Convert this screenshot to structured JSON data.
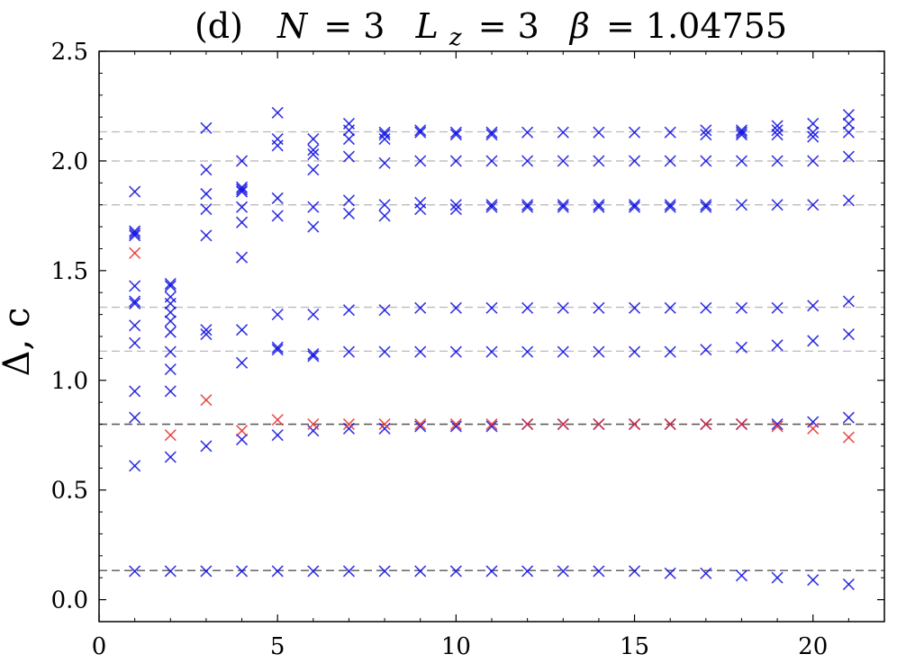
{
  "chart_data": {
    "type": "scatter",
    "title": "(d)  N = 3  L_z = 3  β = 1.04755",
    "title_parts": [
      "(d)",
      "N",
      "= 3",
      "L",
      "z",
      "= 3",
      "β",
      "= 1.04755"
    ],
    "xlabel": "",
    "ylabel": "Δ, c",
    "xlim": [
      0,
      22
    ],
    "ylim": [
      -0.1,
      2.5
    ],
    "xticks": [
      0,
      5,
      10,
      15,
      20
    ],
    "xtick_labels": [
      "0",
      "5",
      "10",
      "15",
      "20"
    ],
    "yticks": [
      0.0,
      0.5,
      1.0,
      1.5,
      2.0,
      2.5
    ],
    "ytick_labels": [
      "0.0",
      "0.5",
      "1.0",
      "1.5",
      "2.0",
      "2.5"
    ],
    "marker": "x",
    "reference_lines": [
      {
        "y": 0.133,
        "color": "#555555"
      },
      {
        "y": 0.8,
        "color": "#e07070"
      },
      {
        "y": 0.8,
        "color": "#555555"
      },
      {
        "y": 1.133,
        "color": "#bbbbbb"
      },
      {
        "y": 1.333,
        "color": "#bbbbbb"
      },
      {
        "y": 1.8,
        "color": "#bbbbbb"
      },
      {
        "y": 2.0,
        "color": "#bbbbbb"
      },
      {
        "y": 2.133,
        "color": "#bbbbbb"
      }
    ],
    "series": [
      {
        "name": "blue",
        "color": "#1010e0",
        "x": [
          1,
          1,
          1,
          1,
          1,
          1,
          1,
          1,
          1,
          1,
          1,
          1,
          1,
          2,
          2,
          2,
          2,
          2,
          2,
          2,
          2,
          2,
          2,
          2,
          2,
          3,
          3,
          3,
          3,
          3,
          3,
          3,
          3,
          3,
          4,
          4,
          4,
          4,
          4,
          4,
          4,
          4,
          4,
          4,
          4,
          5,
          5,
          5,
          5,
          5,
          5,
          5,
          5,
          5,
          5,
          6,
          6,
          6,
          6,
          6,
          6,
          6,
          6,
          6,
          6,
          6,
          7,
          7,
          7,
          7,
          7,
          7,
          7,
          7,
          7,
          7,
          8,
          8,
          8,
          8,
          8,
          8,
          8,
          8,
          8,
          8,
          9,
          9,
          9,
          9,
          9,
          9,
          9,
          9,
          9,
          10,
          10,
          10,
          10,
          10,
          10,
          10,
          10,
          10,
          11,
          11,
          11,
          11,
          11,
          11,
          11,
          11,
          11,
          12,
          12,
          12,
          12,
          12,
          12,
          12,
          12,
          13,
          13,
          13,
          13,
          13,
          13,
          13,
          13,
          14,
          14,
          14,
          14,
          14,
          14,
          14,
          14,
          15,
          15,
          15,
          15,
          15,
          15,
          15,
          15,
          16,
          16,
          16,
          16,
          16,
          16,
          16,
          16,
          17,
          17,
          17,
          17,
          17,
          17,
          17,
          17,
          17,
          18,
          18,
          18,
          18,
          18,
          18,
          18,
          18,
          18,
          19,
          19,
          19,
          19,
          19,
          19,
          19,
          19,
          19,
          20,
          20,
          20,
          20,
          20,
          20,
          20,
          20,
          20,
          21,
          21,
          21,
          21,
          21,
          21,
          21,
          21,
          21
        ],
        "y": [
          0.13,
          0.61,
          0.83,
          0.95,
          1.17,
          1.25,
          1.35,
          1.36,
          1.43,
          1.66,
          1.67,
          1.68,
          1.86,
          0.13,
          0.65,
          0.95,
          1.05,
          1.13,
          1.22,
          1.27,
          1.31,
          1.35,
          1.38,
          1.43,
          1.44,
          0.13,
          0.7,
          1.21,
          1.23,
          1.66,
          1.78,
          1.85,
          1.96,
          2.15,
          0.13,
          0.73,
          1.08,
          1.23,
          1.56,
          1.72,
          1.79,
          1.86,
          1.87,
          1.88,
          2.0,
          0.13,
          0.75,
          1.14,
          1.15,
          1.3,
          1.75,
          1.83,
          2.07,
          2.1,
          2.22,
          0.13,
          0.77,
          1.11,
          1.12,
          1.3,
          1.7,
          1.79,
          1.96,
          2.03,
          2.05,
          2.1,
          0.13,
          0.78,
          1.13,
          1.32,
          1.76,
          1.82,
          2.02,
          2.1,
          2.14,
          2.17,
          0.13,
          0.78,
          1.13,
          1.32,
          1.75,
          1.8,
          1.99,
          2.1,
          2.12,
          2.13,
          0.13,
          0.79,
          1.13,
          1.33,
          1.78,
          1.81,
          2.0,
          2.13,
          2.14,
          0.13,
          0.79,
          1.13,
          1.33,
          1.78,
          1.8,
          2.0,
          2.12,
          2.13,
          0.13,
          0.79,
          1.13,
          1.33,
          1.79,
          1.8,
          2.0,
          2.12,
          2.13,
          0.13,
          0.8,
          1.13,
          1.33,
          1.79,
          1.8,
          2.0,
          2.13,
          0.13,
          0.8,
          1.13,
          1.33,
          1.79,
          1.8,
          2.0,
          2.13,
          0.13,
          0.8,
          1.13,
          1.33,
          1.79,
          1.8,
          2.0,
          2.13,
          0.13,
          0.8,
          1.13,
          1.33,
          1.79,
          1.8,
          2.0,
          2.13,
          0.12,
          0.8,
          1.13,
          1.33,
          1.79,
          1.8,
          2.0,
          2.13,
          0.12,
          0.8,
          1.14,
          1.33,
          1.79,
          1.8,
          2.0,
          2.12,
          2.14,
          0.11,
          0.8,
          1.15,
          1.33,
          1.8,
          2.0,
          2.12,
          2.13,
          2.14,
          0.1,
          0.8,
          1.16,
          1.33,
          1.8,
          2.0,
          2.12,
          2.14,
          2.16,
          0.09,
          0.81,
          1.18,
          1.34,
          1.8,
          2.0,
          2.11,
          2.13,
          2.17,
          0.07,
          0.83,
          1.21,
          1.36,
          1.82,
          2.02,
          2.13,
          2.17,
          2.21
        ]
      },
      {
        "name": "red",
        "color": "#e83030",
        "x": [
          1,
          2,
          3,
          4,
          5,
          6,
          7,
          8,
          9,
          10,
          11,
          12,
          13,
          14,
          15,
          16,
          17,
          18,
          19,
          20,
          21
        ],
        "y": [
          1.58,
          0.75,
          0.91,
          0.77,
          0.82,
          0.8,
          0.8,
          0.8,
          0.8,
          0.8,
          0.8,
          0.8,
          0.8,
          0.8,
          0.8,
          0.8,
          0.8,
          0.8,
          0.79,
          0.78,
          0.74
        ]
      }
    ]
  }
}
